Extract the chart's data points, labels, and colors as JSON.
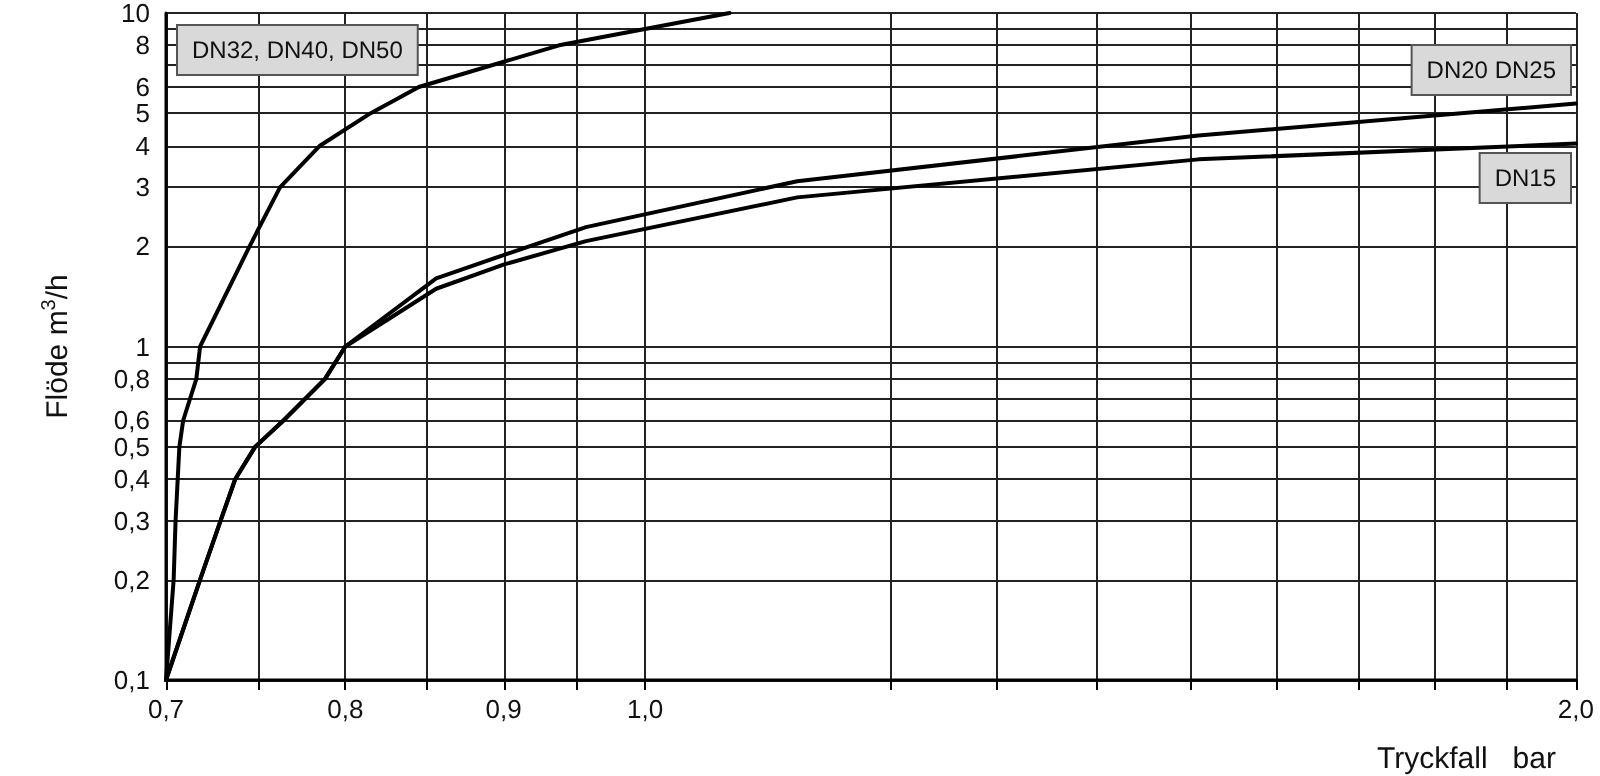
{
  "chart_data": {
    "type": "line",
    "xlabel": "Tryckfall   bar",
    "ylabel": "Flöde m$^{3}$/h",
    "log": "xy",
    "grid": true,
    "legend": false,
    "marker": "none",
    "line_style": "solid",
    "xlim": [
      0.7,
      2.0
    ],
    "ylim": [
      0.1,
      10
    ],
    "xticks": [
      {
        "value": 0.7,
        "label": "0,7"
      },
      {
        "value": 0.75,
        "label": null
      },
      {
        "value": 0.8,
        "label": "0,8"
      },
      {
        "value": 0.85,
        "label": null
      },
      {
        "value": 0.9,
        "label": "0,9"
      },
      {
        "value": 0.95,
        "label": null
      },
      {
        "value": 1.0,
        "label": "1,0"
      },
      {
        "value": 1.2,
        "label": null
      },
      {
        "value": 1.3,
        "label": null
      },
      {
        "value": 1.4,
        "label": null
      },
      {
        "value": 1.5,
        "label": null
      },
      {
        "value": 1.6,
        "label": null
      },
      {
        "value": 1.7,
        "label": null
      },
      {
        "value": 1.8,
        "label": null
      },
      {
        "value": 1.9,
        "label": null
      },
      {
        "value": 2.0,
        "label": "2,0"
      }
    ],
    "yticks": [
      {
        "value": 0.1,
        "label": "0,1"
      },
      {
        "value": 0.2,
        "label": "0,2"
      },
      {
        "value": 0.3,
        "label": "0,3"
      },
      {
        "value": 0.4,
        "label": "0,4"
      },
      {
        "value": 0.5,
        "label": "0,5"
      },
      {
        "value": 0.6,
        "label": "0,6"
      },
      {
        "value": 0.7,
        "label": null
      },
      {
        "value": 0.8,
        "label": "0,8"
      },
      {
        "value": 0.9,
        "label": null
      },
      1,
      2,
      3,
      4,
      5,
      6,
      {
        "value": 7,
        "label": null
      },
      8,
      {
        "value": 9,
        "label": null
      },
      10
    ],
    "series": [
      {
        "name": "DN32, DN40, DN50",
        "color": "#000000",
        "x": [
          0.7,
          0.704,
          0.705,
          0.707,
          0.709,
          0.716,
          0.718,
          0.745,
          0.762,
          0.785,
          0.815,
          0.845,
          0.938,
          1.065
        ],
        "values": [
          0.1,
          0.2,
          0.3,
          0.5,
          0.6,
          0.8,
          1,
          2,
          3,
          4,
          5,
          6,
          8,
          10
        ]
      },
      {
        "name": "DN20 DN25",
        "color": "#000000",
        "x": [
          0.7,
          0.718,
          0.729,
          0.737,
          0.748,
          0.764,
          0.788,
          0.8,
          0.856,
          0.9,
          0.957,
          1.12,
          1.51,
          2.0
        ],
        "values": [
          0.1,
          0.2,
          0.3,
          0.4,
          0.5,
          0.6,
          0.8,
          1.0,
          1.6,
          1.88,
          2.28,
          3.13,
          4.29,
          5.35
        ]
      },
      {
        "name": "DN15",
        "color": "#000000",
        "x": [
          0.7,
          0.718,
          0.729,
          0.737,
          0.748,
          0.764,
          0.788,
          0.8,
          0.856,
          0.9,
          0.957,
          1.12,
          1.51,
          2.0
        ],
        "values": [
          0.1,
          0.2,
          0.3,
          0.4,
          0.5,
          0.6,
          0.8,
          1.0,
          1.49,
          1.76,
          2.07,
          2.8,
          3.64,
          4.06
        ]
      }
    ]
  }
}
